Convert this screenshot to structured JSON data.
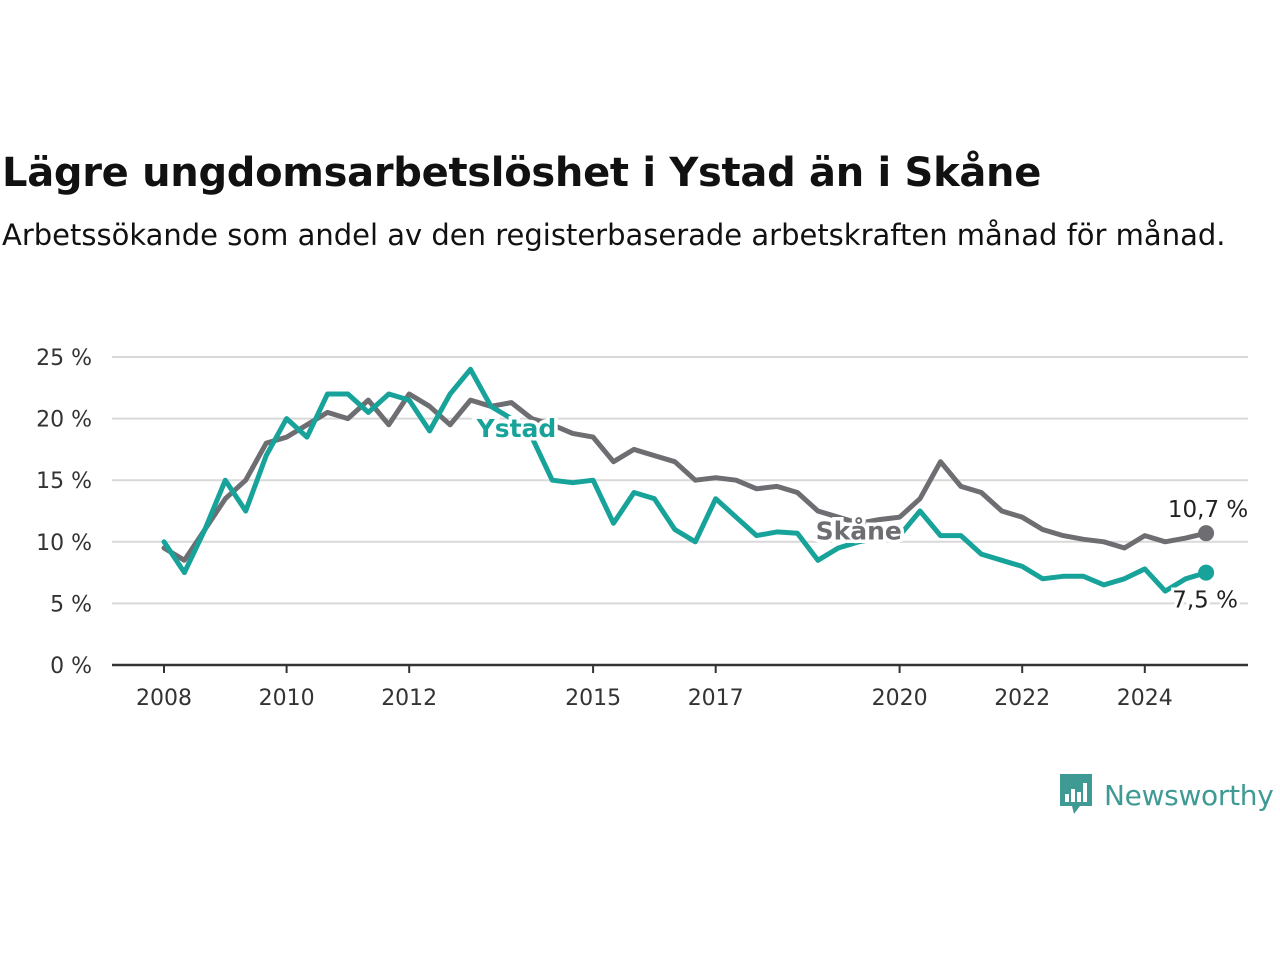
{
  "chart_data": {
    "type": "line",
    "title": "Lägre ungdomsarbetslöshet i Ystad än i Skåne",
    "subtitle": "Arbetssökande som andel av den registerbaserade arbetskraften månad för månad.",
    "ylim": [
      0,
      25
    ],
    "yticks": [
      0,
      5,
      10,
      15,
      20,
      25
    ],
    "ytick_labels": [
      "0 %",
      "5 %",
      "10 %",
      "15 %",
      "20 %",
      "25 %"
    ],
    "xlim": [
      "2008-01",
      "2025-12"
    ],
    "xticks": [
      "2008",
      "2010",
      "2012",
      "2015",
      "2017",
      "2020",
      "2022",
      "2024"
    ],
    "grid": true,
    "legend": "inline",
    "series": [
      {
        "name": "Skåne",
        "color": "#6e6e72",
        "end_label": "10,7 %",
        "x": [
          "2008-01",
          "2008-05",
          "2008-09",
          "2009-01",
          "2009-05",
          "2009-09",
          "2010-01",
          "2010-05",
          "2010-09",
          "2011-01",
          "2011-05",
          "2011-09",
          "2012-01",
          "2012-05",
          "2012-09",
          "2013-01",
          "2013-05",
          "2013-09",
          "2014-01",
          "2014-05",
          "2014-09",
          "2015-01",
          "2015-05",
          "2015-09",
          "2016-01",
          "2016-05",
          "2016-09",
          "2017-01",
          "2017-05",
          "2017-09",
          "2018-01",
          "2018-05",
          "2018-09",
          "2019-01",
          "2019-05",
          "2019-09",
          "2020-01",
          "2020-05",
          "2020-09",
          "2021-01",
          "2021-05",
          "2021-09",
          "2022-01",
          "2022-05",
          "2022-09",
          "2023-01",
          "2023-05",
          "2023-09",
          "2024-01",
          "2024-05",
          "2024-09",
          "2025-01"
        ],
        "values": [
          9.5,
          8.5,
          11.0,
          13.5,
          15.0,
          18.0,
          18.5,
          19.5,
          20.5,
          20.0,
          21.5,
          19.5,
          22.0,
          21.0,
          19.5,
          21.5,
          21.0,
          21.3,
          20.0,
          19.5,
          18.8,
          18.5,
          16.5,
          17.5,
          17.0,
          16.5,
          15.0,
          15.2,
          15.0,
          14.3,
          14.5,
          14.0,
          12.5,
          12.0,
          11.5,
          11.8,
          12.0,
          13.5,
          16.5,
          14.5,
          14.0,
          12.5,
          12.0,
          11.0,
          10.5,
          10.2,
          10.0,
          9.5,
          10.5,
          10.0,
          10.3,
          10.7
        ]
      },
      {
        "name": "Ystad",
        "color": "#17a39a",
        "end_label": "7,5 %",
        "x": [
          "2008-01",
          "2008-05",
          "2008-09",
          "2009-01",
          "2009-05",
          "2009-09",
          "2010-01",
          "2010-05",
          "2010-09",
          "2011-01",
          "2011-05",
          "2011-09",
          "2012-01",
          "2012-05",
          "2012-09",
          "2013-01",
          "2013-05",
          "2013-09",
          "2014-01",
          "2014-05",
          "2014-09",
          "2015-01",
          "2015-05",
          "2015-09",
          "2016-01",
          "2016-05",
          "2016-09",
          "2017-01",
          "2017-05",
          "2017-09",
          "2018-01",
          "2018-05",
          "2018-09",
          "2019-01",
          "2019-05",
          "2019-09",
          "2020-01",
          "2020-05",
          "2020-09",
          "2021-01",
          "2021-05",
          "2021-09",
          "2022-01",
          "2022-05",
          "2022-09",
          "2023-01",
          "2023-05",
          "2023-09",
          "2024-01",
          "2024-05",
          "2024-09",
          "2025-01"
        ],
        "values": [
          10.0,
          7.5,
          11.0,
          15.0,
          12.5,
          17.0,
          20.0,
          18.5,
          22.0,
          22.0,
          20.5,
          22.0,
          21.5,
          19.0,
          22.0,
          24.0,
          21.0,
          20.0,
          18.5,
          15.0,
          14.8,
          15.0,
          11.5,
          14.0,
          13.5,
          11.0,
          10.0,
          13.5,
          12.0,
          10.5,
          10.8,
          10.7,
          8.5,
          9.5,
          10.0,
          10.3,
          10.5,
          12.5,
          10.5,
          10.5,
          9.0,
          8.5,
          8.0,
          7.0,
          7.2,
          7.2,
          6.5,
          7.0,
          7.8,
          6.0,
          7.0,
          7.5
        ]
      }
    ]
  },
  "branding": {
    "logo_text": "Newsworthy",
    "logo_color": "#3f9a94"
  }
}
